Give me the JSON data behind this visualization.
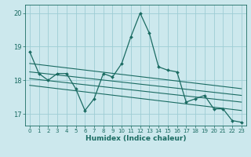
{
  "xlabel": "Humidex (Indice chaleur)",
  "background_color": "#cce8ed",
  "line_color": "#1a6b62",
  "grid_color": "#9ecdd4",
  "xlim": [
    -0.5,
    23.5
  ],
  "ylim": [
    16.65,
    20.25
  ],
  "yticks": [
    17,
    18,
    19,
    20
  ],
  "xticks": [
    0,
    1,
    2,
    3,
    4,
    5,
    6,
    7,
    8,
    9,
    10,
    11,
    12,
    13,
    14,
    15,
    16,
    17,
    18,
    19,
    20,
    21,
    22,
    23
  ],
  "main_x": [
    0,
    1,
    2,
    3,
    4,
    5,
    6,
    7,
    8,
    9,
    10,
    11,
    12,
    13,
    14,
    15,
    16,
    17,
    18,
    19,
    20,
    21,
    22,
    23
  ],
  "main_y": [
    18.85,
    18.2,
    18.0,
    18.2,
    18.2,
    17.75,
    17.1,
    17.45,
    18.2,
    18.1,
    18.5,
    19.3,
    20.0,
    19.4,
    18.4,
    18.3,
    18.25,
    17.35,
    17.45,
    17.55,
    17.15,
    17.15,
    16.8,
    16.75
  ],
  "reg_lines": [
    {
      "x": [
        0,
        23
      ],
      "y": [
        18.5,
        17.75
      ]
    },
    {
      "x": [
        0,
        23
      ],
      "y": [
        18.25,
        17.55
      ]
    },
    {
      "x": [
        0,
        23
      ],
      "y": [
        18.05,
        17.35
      ]
    },
    {
      "x": [
        0,
        23
      ],
      "y": [
        17.85,
        17.1
      ]
    }
  ]
}
